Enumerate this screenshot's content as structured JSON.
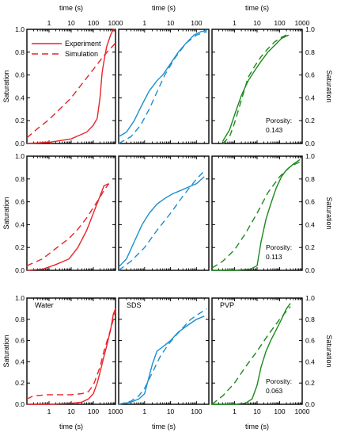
{
  "colors": {
    "water": "#e8242a",
    "sds": "#1a8fd0",
    "pvp": "#1b8a1b",
    "axis": "#000000"
  },
  "chart_data": {
    "type": "line",
    "layout": "3x3 grid of panels; rows = porosity, columns = solution",
    "axes": {
      "xlabel": "time (s)",
      "ylabel": "Saturation",
      "xscale": "log",
      "ylim": [
        0,
        1.0
      ],
      "yticks": [
        "0.0",
        "0.2",
        "0.4",
        "0.6",
        "0.8",
        "1.0"
      ],
      "xlim_per_column": [
        [
          0.1,
          1000
        ],
        [
          0.1,
          300
        ],
        [
          0.1,
          1000
        ]
      ],
      "xticks_per_column": [
        [
          "1",
          "10",
          "100",
          "1000"
        ],
        [
          "1",
          "10",
          "100"
        ],
        [
          "1",
          "10",
          "100",
          "1000"
        ]
      ]
    },
    "legend": {
      "position": "top-left of first panel",
      "entries": [
        {
          "label": "Experiment",
          "style": "solid"
        },
        {
          "label": "Simulation",
          "style": "dashed"
        }
      ]
    },
    "column_labels": [
      "Water",
      "SDS",
      "PVP"
    ],
    "porosity_label": "Porosity:",
    "rows": [
      {
        "porosity": "0.143",
        "panels": [
          {
            "color": "water",
            "experiment": {
              "x": [
                0.1,
                1,
                10,
                50,
                100,
                150,
                200,
                250,
                300,
                400,
                600,
                800,
                1000
              ],
              "y": [
                0,
                0.01,
                0.04,
                0.1,
                0.16,
                0.22,
                0.4,
                0.62,
                0.72,
                0.85,
                0.95,
                1.0,
                1.0
              ]
            },
            "simulation": {
              "x": [
                0.1,
                0.3,
                1,
                3,
                10,
                30,
                100,
                300,
                1000
              ],
              "y": [
                0.05,
                0.13,
                0.21,
                0.3,
                0.4,
                0.52,
                0.65,
                0.77,
                0.88
              ]
            }
          },
          {
            "color": "sds",
            "experiment": {
              "x": [
                0.1,
                0.2,
                0.4,
                0.8,
                1.5,
                3,
                5,
                10,
                20,
                40,
                80,
                150,
                250
              ],
              "y": [
                0.06,
                0.1,
                0.2,
                0.34,
                0.46,
                0.55,
                0.6,
                0.7,
                0.8,
                0.88,
                0.95,
                0.98,
                0.99
              ]
            },
            "simulation": {
              "x": [
                0.1,
                0.3,
                0.7,
                1.5,
                3,
                6,
                15,
                40,
                100,
                250
              ],
              "y": [
                0,
                0.06,
                0.16,
                0.3,
                0.45,
                0.6,
                0.75,
                0.88,
                0.95,
                0.98
              ]
            }
          },
          {
            "color": "pvp",
            "experiment": {
              "x": [
                0.3,
                0.6,
                1,
                2,
                4,
                8,
                15,
                30,
                60,
                120,
                250
              ],
              "y": [
                0.02,
                0.12,
                0.25,
                0.42,
                0.55,
                0.64,
                0.72,
                0.8,
                0.86,
                0.92,
                0.95
              ]
            },
            "simulation": {
              "x": [
                0.3,
                0.6,
                1,
                2,
                4,
                8,
                15,
                30,
                60,
                120,
                250
              ],
              "y": [
                0,
                0.06,
                0.18,
                0.38,
                0.58,
                0.68,
                0.76,
                0.83,
                0.89,
                0.93,
                0.96
              ]
            }
          }
        ]
      },
      {
        "porosity": "0.113",
        "panels": [
          {
            "color": "water",
            "experiment": {
              "x": [
                0.1,
                0.5,
                2,
                8,
                20,
                50,
                100,
                200,
                300,
                500
              ],
              "y": [
                0,
                0.01,
                0.05,
                0.1,
                0.2,
                0.35,
                0.5,
                0.65,
                0.74,
                0.76
              ]
            },
            "simulation": {
              "x": [
                0.1,
                0.5,
                2,
                8,
                20,
                50,
                100,
                200,
                300,
                500
              ],
              "y": [
                0.04,
                0.1,
                0.19,
                0.28,
                0.36,
                0.46,
                0.55,
                0.64,
                0.7,
                0.76
              ]
            }
          },
          {
            "color": "sds",
            "experiment": {
              "x": [
                0.1,
                0.2,
                0.4,
                0.8,
                1.5,
                3,
                6,
                12,
                25,
                50,
                100,
                200
              ],
              "y": [
                0.03,
                0.1,
                0.25,
                0.4,
                0.5,
                0.58,
                0.63,
                0.67,
                0.7,
                0.73,
                0.76,
                0.82
              ]
            },
            "simulation": {
              "x": [
                0.1,
                0.3,
                1,
                3,
                10,
                30,
                100,
                200
              ],
              "y": [
                0,
                0.08,
                0.2,
                0.35,
                0.5,
                0.65,
                0.8,
                0.87
              ]
            }
          },
          {
            "color": "pvp",
            "experiment": {
              "x": [
                0.1,
                1,
                5,
                10,
                15,
                25,
                40,
                70,
                120,
                200,
                400,
                800
              ],
              "y": [
                0,
                0,
                0.01,
                0.04,
                0.25,
                0.45,
                0.58,
                0.72,
                0.82,
                0.88,
                0.93,
                0.97
              ]
            },
            "simulation": {
              "x": [
                0.1,
                0.3,
                1,
                3,
                10,
                30,
                100,
                300,
                1000
              ],
              "y": [
                0.02,
                0.08,
                0.18,
                0.32,
                0.5,
                0.68,
                0.82,
                0.91,
                0.96
              ]
            }
          }
        ]
      },
      {
        "porosity": "0.063",
        "panels": [
          {
            "color": "water",
            "experiment": {
              "x": [
                0.1,
                1,
                10,
                30,
                60,
                100,
                150,
                200,
                300,
                400,
                600,
                800,
                1000
              ],
              "y": [
                0,
                0,
                0.01,
                0.02,
                0.05,
                0.1,
                0.2,
                0.3,
                0.45,
                0.55,
                0.7,
                0.85,
                0.9
              ]
            },
            "simulation": {
              "x": [
                0.1,
                0.2,
                1,
                10,
                30,
                60,
                100,
                200,
                300,
                500,
                800,
                1000
              ],
              "y": [
                0.05,
                0.08,
                0.09,
                0.09,
                0.1,
                0.12,
                0.18,
                0.35,
                0.5,
                0.65,
                0.8,
                0.88
              ]
            }
          },
          {
            "color": "sds",
            "experiment": {
              "x": [
                0.1,
                0.3,
                0.6,
                1,
                2,
                3,
                5,
                10,
                20,
                50,
                100,
                200
              ],
              "y": [
                0,
                0.02,
                0.05,
                0.1,
                0.38,
                0.5,
                0.54,
                0.6,
                0.68,
                0.75,
                0.8,
                0.83
              ]
            },
            "simulation": {
              "x": [
                0.1,
                0.3,
                0.6,
                1,
                2,
                4,
                8,
                15,
                30,
                60,
                120,
                250
              ],
              "y": [
                0,
                0.03,
                0.08,
                0.15,
                0.3,
                0.45,
                0.56,
                0.64,
                0.72,
                0.8,
                0.85,
                0.9
              ]
            }
          },
          {
            "color": "pvp",
            "experiment": {
              "x": [
                0.1,
                1,
                3,
                6,
                10,
                15,
                25,
                40,
                70,
                120,
                200,
                300
              ],
              "y": [
                0,
                0,
                0.01,
                0.05,
                0.18,
                0.35,
                0.5,
                0.6,
                0.7,
                0.8,
                0.9,
                0.95
              ]
            },
            "simulation": {
              "x": [
                0.1,
                0.3,
                1,
                3,
                10,
                30,
                100,
                300
              ],
              "y": [
                0,
                0.08,
                0.2,
                0.35,
                0.5,
                0.65,
                0.8,
                0.92
              ]
            }
          }
        ]
      }
    ]
  }
}
